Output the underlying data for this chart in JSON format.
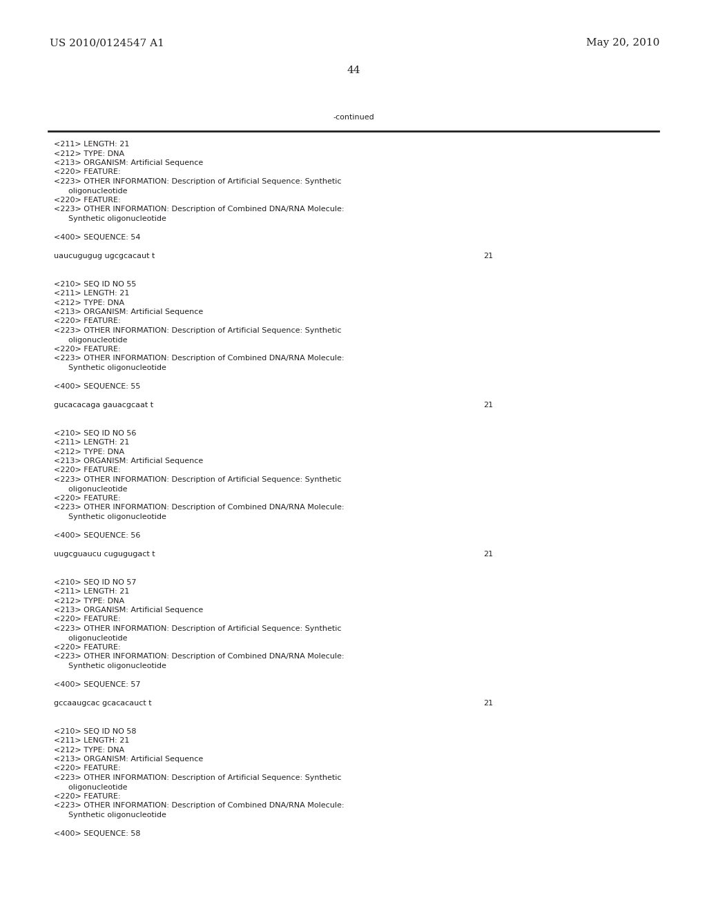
{
  "header_left": "US 2010/0124547 A1",
  "header_right": "May 20, 2010",
  "page_number": "44",
  "continued_text": "-continued",
  "background_color": "#ffffff",
  "text_color": "#231f20",
  "font_size_header": 11,
  "font_size_body": 8.0,
  "lines": [
    {
      "text": "<211> LENGTH: 21",
      "type": "body"
    },
    {
      "text": "<212> TYPE: DNA",
      "type": "body"
    },
    {
      "text": "<213> ORGANISM: Artificial Sequence",
      "type": "body"
    },
    {
      "text": "<220> FEATURE:",
      "type": "body"
    },
    {
      "text": "<223> OTHER INFORMATION: Description of Artificial Sequence: Synthetic",
      "type": "body"
    },
    {
      "text": "      oligonucleotide",
      "type": "body"
    },
    {
      "text": "<220> FEATURE:",
      "type": "body"
    },
    {
      "text": "<223> OTHER INFORMATION: Description of Combined DNA/RNA Molecule:",
      "type": "body"
    },
    {
      "text": "      Synthetic oligonucleotide",
      "type": "body"
    },
    {
      "text": "",
      "type": "blank"
    },
    {
      "text": "<400> SEQUENCE: 54",
      "type": "body"
    },
    {
      "text": "",
      "type": "blank"
    },
    {
      "text": "uaucugugug ugcgcacaut t",
      "type": "seq",
      "num": "21"
    },
    {
      "text": "",
      "type": "blank"
    },
    {
      "text": "",
      "type": "blank"
    },
    {
      "text": "<210> SEQ ID NO 55",
      "type": "body"
    },
    {
      "text": "<211> LENGTH: 21",
      "type": "body"
    },
    {
      "text": "<212> TYPE: DNA",
      "type": "body"
    },
    {
      "text": "<213> ORGANISM: Artificial Sequence",
      "type": "body"
    },
    {
      "text": "<220> FEATURE:",
      "type": "body"
    },
    {
      "text": "<223> OTHER INFORMATION: Description of Artificial Sequence: Synthetic",
      "type": "body"
    },
    {
      "text": "      oligonucleotide",
      "type": "body"
    },
    {
      "text": "<220> FEATURE:",
      "type": "body"
    },
    {
      "text": "<223> OTHER INFORMATION: Description of Combined DNA/RNA Molecule:",
      "type": "body"
    },
    {
      "text": "      Synthetic oligonucleotide",
      "type": "body"
    },
    {
      "text": "",
      "type": "blank"
    },
    {
      "text": "<400> SEQUENCE: 55",
      "type": "body"
    },
    {
      "text": "",
      "type": "blank"
    },
    {
      "text": "gucacacaga gauacgcaat t",
      "type": "seq",
      "num": "21"
    },
    {
      "text": "",
      "type": "blank"
    },
    {
      "text": "",
      "type": "blank"
    },
    {
      "text": "<210> SEQ ID NO 56",
      "type": "body"
    },
    {
      "text": "<211> LENGTH: 21",
      "type": "body"
    },
    {
      "text": "<212> TYPE: DNA",
      "type": "body"
    },
    {
      "text": "<213> ORGANISM: Artificial Sequence",
      "type": "body"
    },
    {
      "text": "<220> FEATURE:",
      "type": "body"
    },
    {
      "text": "<223> OTHER INFORMATION: Description of Artificial Sequence: Synthetic",
      "type": "body"
    },
    {
      "text": "      oligonucleotide",
      "type": "body"
    },
    {
      "text": "<220> FEATURE:",
      "type": "body"
    },
    {
      "text": "<223> OTHER INFORMATION: Description of Combined DNA/RNA Molecule:",
      "type": "body"
    },
    {
      "text": "      Synthetic oligonucleotide",
      "type": "body"
    },
    {
      "text": "",
      "type": "blank"
    },
    {
      "text": "<400> SEQUENCE: 56",
      "type": "body"
    },
    {
      "text": "",
      "type": "blank"
    },
    {
      "text": "uugcguaucu cugugugact t",
      "type": "seq",
      "num": "21"
    },
    {
      "text": "",
      "type": "blank"
    },
    {
      "text": "",
      "type": "blank"
    },
    {
      "text": "<210> SEQ ID NO 57",
      "type": "body"
    },
    {
      "text": "<211> LENGTH: 21",
      "type": "body"
    },
    {
      "text": "<212> TYPE: DNA",
      "type": "body"
    },
    {
      "text": "<213> ORGANISM: Artificial Sequence",
      "type": "body"
    },
    {
      "text": "<220> FEATURE:",
      "type": "body"
    },
    {
      "text": "<223> OTHER INFORMATION: Description of Artificial Sequence: Synthetic",
      "type": "body"
    },
    {
      "text": "      oligonucleotide",
      "type": "body"
    },
    {
      "text": "<220> FEATURE:",
      "type": "body"
    },
    {
      "text": "<223> OTHER INFORMATION: Description of Combined DNA/RNA Molecule:",
      "type": "body"
    },
    {
      "text": "      Synthetic oligonucleotide",
      "type": "body"
    },
    {
      "text": "",
      "type": "blank"
    },
    {
      "text": "<400> SEQUENCE: 57",
      "type": "body"
    },
    {
      "text": "",
      "type": "blank"
    },
    {
      "text": "gccaaugcac gcacacauct t",
      "type": "seq",
      "num": "21"
    },
    {
      "text": "",
      "type": "blank"
    },
    {
      "text": "",
      "type": "blank"
    },
    {
      "text": "<210> SEQ ID NO 58",
      "type": "body"
    },
    {
      "text": "<211> LENGTH: 21",
      "type": "body"
    },
    {
      "text": "<212> TYPE: DNA",
      "type": "body"
    },
    {
      "text": "<213> ORGANISM: Artificial Sequence",
      "type": "body"
    },
    {
      "text": "<220> FEATURE:",
      "type": "body"
    },
    {
      "text": "<223> OTHER INFORMATION: Description of Artificial Sequence: Synthetic",
      "type": "body"
    },
    {
      "text": "      oligonucleotide",
      "type": "body"
    },
    {
      "text": "<220> FEATURE:",
      "type": "body"
    },
    {
      "text": "<223> OTHER INFORMATION: Description of Combined DNA/RNA Molecule:",
      "type": "body"
    },
    {
      "text": "      Synthetic oligonucleotide",
      "type": "body"
    },
    {
      "text": "",
      "type": "blank"
    },
    {
      "text": "<400> SEQUENCE: 58",
      "type": "body"
    }
  ]
}
